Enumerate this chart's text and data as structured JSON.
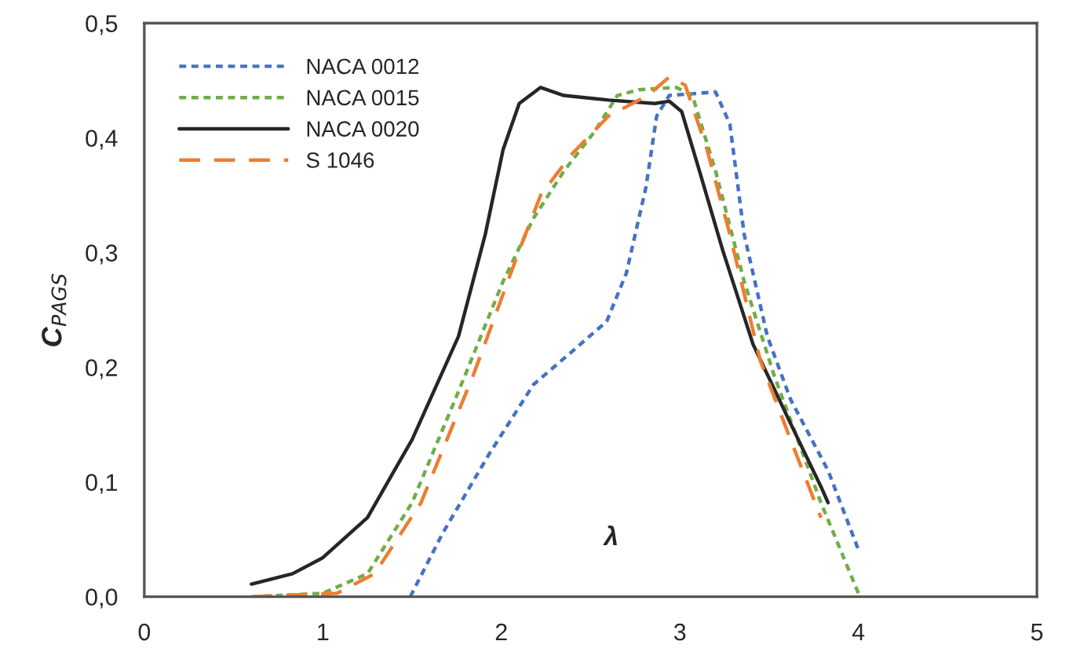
{
  "chart_data": {
    "type": "line",
    "ylabel": "C$_{PAGS}$",
    "annotations": [
      "λ"
    ],
    "xlim": [
      0,
      5
    ],
    "xticks": [
      0,
      1,
      2,
      3,
      4,
      5
    ],
    "ylim": [
      0,
      0.5
    ],
    "yticks": [
      {
        "value": 0,
        "label": "0,0"
      },
      {
        "value": 0.1,
        "label": "0,1"
      },
      {
        "value": 0.2,
        "label": "0,2"
      },
      {
        "value": 0.3,
        "label": "0,3"
      },
      {
        "value": 0.4,
        "label": "0,4"
      },
      {
        "value": 0.5,
        "label": "0,5"
      }
    ],
    "grid": false,
    "legend": "top left",
    "marker": "none",
    "series": [
      {
        "name": "NACA 0012",
        "color": "#4472c4",
        "line_style": "dotted",
        "x": [
          1.49,
          1.67,
          1.93,
          2.18,
          2.39,
          2.59,
          2.7,
          2.81,
          2.87,
          2.94,
          3.2,
          3.28,
          3.36,
          3.49,
          3.62,
          3.83,
          4.0
        ],
        "values": [
          0,
          0.055,
          0.124,
          0.185,
          0.213,
          0.24,
          0.282,
          0.357,
          0.419,
          0.437,
          0.44,
          0.412,
          0.316,
          0.227,
          0.172,
          0.11,
          0.041
        ]
      },
      {
        "name": "NACA 0015",
        "color": "#70ad47",
        "line_style": "dotted",
        "x": [
          0.6,
          1.0,
          1.25,
          1.5,
          1.76,
          2.01,
          2.18,
          2.35,
          2.52,
          2.65,
          2.77,
          2.98,
          3.07,
          3.2,
          3.36,
          3.53,
          3.79,
          4.0
        ],
        "values": [
          0,
          0.003,
          0.02,
          0.082,
          0.179,
          0.275,
          0.33,
          0.371,
          0.405,
          0.437,
          0.442,
          0.444,
          0.437,
          0.371,
          0.275,
          0.192,
          0.082,
          0.003
        ]
      },
      {
        "name": "NACA 0020",
        "color": "#262626",
        "line_style": "solid",
        "x": [
          0.6,
          0.83,
          1.0,
          1.25,
          1.5,
          1.76,
          1.91,
          2.01,
          2.1,
          2.22,
          2.35,
          2.6,
          2.86,
          2.94,
          3.01,
          3.11,
          3.24,
          3.41,
          3.62,
          3.79,
          3.83
        ],
        "values": [
          0.011,
          0.02,
          0.034,
          0.069,
          0.137,
          0.227,
          0.316,
          0.39,
          0.43,
          0.444,
          0.437,
          0.433,
          0.43,
          0.432,
          0.423,
          0.371,
          0.302,
          0.22,
          0.151,
          0.096,
          0.082
        ]
      },
      {
        "name": "S 1046",
        "color": "#ed7d31",
        "line_style": "dashed",
        "x": [
          0.6,
          1.08,
          1.29,
          1.55,
          1.84,
          2.1,
          2.22,
          2.39,
          2.6,
          2.82,
          2.94,
          3.03,
          3.15,
          3.28,
          3.45,
          3.62,
          3.79
        ],
        "values": [
          0,
          0.003,
          0.02,
          0.082,
          0.192,
          0.302,
          0.35,
          0.385,
          0.419,
          0.437,
          0.453,
          0.446,
          0.391,
          0.316,
          0.206,
          0.137,
          0.069
        ]
      }
    ]
  }
}
